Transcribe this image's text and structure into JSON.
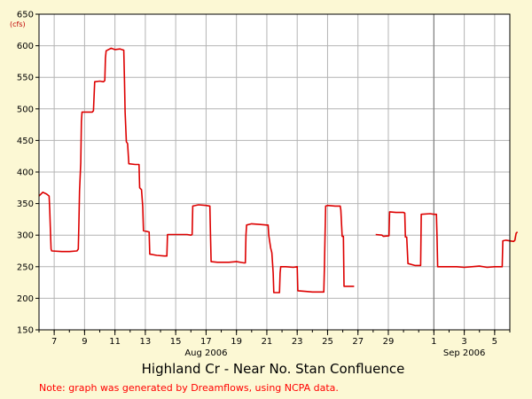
{
  "colors": {
    "background": "#fcf8d4",
    "plot_background": "#ffffff",
    "grid": "#b4b4b4",
    "series": "#dd0000",
    "note": "#ff0000",
    "unit": "#c00000"
  },
  "note": "Note: graph was generated by Dreamflows, using NCPA data.",
  "chart_data": {
    "type": "line",
    "title": "Highland Cr - Near No. Stan Confluence",
    "ylabel": "(cfs)",
    "xlabel": "",
    "ylim": [
      150,
      650
    ],
    "y_ticks": [
      150,
      200,
      250,
      300,
      350,
      400,
      450,
      500,
      550,
      600,
      650
    ],
    "xlim": [
      "2006-08-06",
      "2006-09-06"
    ],
    "x_ticks": [
      {
        "date": "2006-08-07",
        "label": "7"
      },
      {
        "date": "2006-08-09",
        "label": "9"
      },
      {
        "date": "2006-08-11",
        "label": "11"
      },
      {
        "date": "2006-08-13",
        "label": "13"
      },
      {
        "date": "2006-08-15",
        "label": "15"
      },
      {
        "date": "2006-08-17",
        "label": "17"
      },
      {
        "date": "2006-08-19",
        "label": "19"
      },
      {
        "date": "2006-08-21",
        "label": "21"
      },
      {
        "date": "2006-08-23",
        "label": "23"
      },
      {
        "date": "2006-08-25",
        "label": "25"
      },
      {
        "date": "2006-08-27",
        "label": "27"
      },
      {
        "date": "2006-08-29",
        "label": "29"
      },
      {
        "date": "2006-09-01",
        "label": "1"
      },
      {
        "date": "2006-09-03",
        "label": "3"
      },
      {
        "date": "2006-09-05",
        "label": "5"
      }
    ],
    "month_labels": [
      {
        "date": "2006-08-17",
        "label": "Aug 2006"
      },
      {
        "date": "2006-09-03",
        "label": "Sep 2006"
      }
    ],
    "month_dividers": [
      "2006-09-01"
    ],
    "grid": true,
    "series": [
      {
        "segments": [
          [
            [
              "2006-08-06T00:00",
              362
            ],
            [
              "2006-08-06T06:00",
              368
            ],
            [
              "2006-08-06T12:00",
              365
            ],
            [
              "2006-08-06T16:00",
              362
            ],
            [
              "2006-08-06T17:00",
              340
            ],
            [
              "2006-08-06T18:00",
              310
            ],
            [
              "2006-08-06T19:00",
              278
            ],
            [
              "2006-08-06T20:00",
              275
            ],
            [
              "2006-08-07T12:00",
              274
            ],
            [
              "2006-08-08T00:00",
              274
            ],
            [
              "2006-08-08T12:00",
              275
            ],
            [
              "2006-08-08T14:00",
              278
            ],
            [
              "2006-08-08T15:00",
              320
            ],
            [
              "2006-08-08T16:00",
              370
            ],
            [
              "2006-08-08T18:00",
              415
            ],
            [
              "2006-08-08T19:00",
              480
            ],
            [
              "2006-08-08T20:00",
              495
            ],
            [
              "2006-08-09T12:00",
              495
            ],
            [
              "2006-08-09T14:00",
              497
            ],
            [
              "2006-08-09T15:00",
              520
            ],
            [
              "2006-08-09T16:00",
              543
            ],
            [
              "2006-08-10T00:00",
              544
            ],
            [
              "2006-08-10T06:00",
              543
            ],
            [
              "2006-08-10T08:00",
              545
            ],
            [
              "2006-08-10T09:00",
              580
            ],
            [
              "2006-08-10T10:00",
              592
            ],
            [
              "2006-08-10T18:00",
              596
            ],
            [
              "2006-08-11T00:00",
              594
            ],
            [
              "2006-08-11T08:00",
              595
            ],
            [
              "2006-08-11T14:00",
              593
            ],
            [
              "2006-08-11T15:00",
              545
            ],
            [
              "2006-08-11T16:00",
              495
            ],
            [
              "2006-08-11T18:00",
              448
            ],
            [
              "2006-08-11T20:00",
              445
            ],
            [
              "2006-08-11T22:00",
              413
            ],
            [
              "2006-08-12T08:00",
              412
            ],
            [
              "2006-08-12T14:00",
              412
            ],
            [
              "2006-08-12T15:00",
              375
            ],
            [
              "2006-08-12T18:00",
              372
            ],
            [
              "2006-08-12T20:00",
              345
            ],
            [
              "2006-08-12T21:00",
              307
            ],
            [
              "2006-08-13T06:00",
              305
            ],
            [
              "2006-08-13T07:00",
              270
            ],
            [
              "2006-08-13T18:00",
              268
            ],
            [
              "2006-08-14T06:00",
              267
            ],
            [
              "2006-08-14T10:00",
              267
            ],
            [
              "2006-08-14T11:00",
              301
            ],
            [
              "2006-08-15T00:00",
              301
            ],
            [
              "2006-08-15T18:00",
              301
            ],
            [
              "2006-08-16T00:00",
              300
            ],
            [
              "2006-08-16T02:00",
              301
            ],
            [
              "2006-08-16T03:00",
              346
            ],
            [
              "2006-08-16T12:00",
              348
            ],
            [
              "2006-08-17T00:00",
              347
            ],
            [
              "2006-08-17T06:00",
              346
            ],
            [
              "2006-08-17T07:00",
              300
            ],
            [
              "2006-08-17T08:00",
              258
            ],
            [
              "2006-08-17T18:00",
              257
            ],
            [
              "2006-08-18T12:00",
              257
            ],
            [
              "2006-08-19T00:00",
              258
            ],
            [
              "2006-08-19T12:00",
              256
            ],
            [
              "2006-08-19T14:00",
              256
            ],
            [
              "2006-08-19T15:00",
              300
            ],
            [
              "2006-08-19T16:00",
              316
            ],
            [
              "2006-08-20T00:00",
              318
            ],
            [
              "2006-08-20T12:00",
              317
            ],
            [
              "2006-08-21T00:00",
              316
            ],
            [
              "2006-08-21T02:00",
              316
            ],
            [
              "2006-08-21T03:00",
              300
            ],
            [
              "2006-08-21T06:00",
              280
            ],
            [
              "2006-08-21T08:00",
              272
            ],
            [
              "2006-08-21T09:00",
              255
            ],
            [
              "2006-08-21T10:00",
              240
            ],
            [
              "2006-08-21T11:00",
              209
            ],
            [
              "2006-08-21T20:00",
              209
            ],
            [
              "2006-08-21T21:00",
              240
            ],
            [
              "2006-08-21T22:00",
              250
            ],
            [
              "2006-08-22T06:00",
              250
            ],
            [
              "2006-08-22T18:00",
              249
            ],
            [
              "2006-08-23T00:00",
              250
            ],
            [
              "2006-08-23T01:00",
              212
            ],
            [
              "2006-08-23T12:00",
              211
            ],
            [
              "2006-08-24T00:00",
              210
            ],
            [
              "2006-08-24T12:00",
              210
            ],
            [
              "2006-08-24T18:00",
              210
            ],
            [
              "2006-08-24T19:00",
              250
            ],
            [
              "2006-08-24T20:00",
              300
            ],
            [
              "2006-08-24T21:00",
              346
            ],
            [
              "2006-08-25T00:00",
              347
            ],
            [
              "2006-08-25T12:00",
              346
            ],
            [
              "2006-08-25T20:00",
              346
            ],
            [
              "2006-08-25T21:00",
              340
            ],
            [
              "2006-08-25T23:00",
              298
            ],
            [
              "2006-08-26T01:00",
              298
            ],
            [
              "2006-08-26T02:00",
              219
            ],
            [
              "2006-08-26T18:00",
              219
            ]
          ],
          [
            [
              "2006-08-28T04:00",
              301
            ],
            [
              "2006-08-28T14:00",
              300
            ],
            [
              "2006-08-28T16:00",
              298
            ],
            [
              "2006-08-29T01:00",
              299
            ],
            [
              "2006-08-29T02:00",
              337
            ],
            [
              "2006-08-29T12:00",
              336
            ],
            [
              "2006-08-30T00:00",
              336
            ],
            [
              "2006-08-30T02:00",
              335
            ],
            [
              "2006-08-30T03:00",
              297
            ],
            [
              "2006-08-30T05:00",
              297
            ],
            [
              "2006-08-30T07:00",
              255
            ],
            [
              "2006-08-30T18:00",
              252
            ],
            [
              "2006-08-31T03:00",
              252
            ],
            [
              "2006-08-31T04:00",
              333
            ],
            [
              "2006-08-31T18:00",
              334
            ],
            [
              "2006-09-01T00:00",
              333
            ],
            [
              "2006-09-01T04:00",
              333
            ],
            [
              "2006-09-01T05:00",
              297
            ],
            [
              "2006-09-01T06:00",
              250
            ],
            [
              "2006-09-01T18:00",
              250
            ],
            [
              "2006-09-02T12:00",
              250
            ],
            [
              "2006-09-03T00:00",
              249
            ],
            [
              "2006-09-03T12:00",
              250
            ],
            [
              "2006-09-04T00:00",
              251
            ],
            [
              "2006-09-04T12:00",
              249
            ],
            [
              "2006-09-05T00:00",
              250
            ],
            [
              "2006-09-05T12:00",
              250
            ],
            [
              "2006-09-05T13:00",
              291
            ],
            [
              "2006-09-05T18:00",
              292
            ],
            [
              "2006-09-06T06:00",
              290
            ],
            [
              "2006-09-06T08:00",
              292
            ],
            [
              "2006-09-06T10:00",
              303
            ],
            [
              "2006-09-06T12:00",
              305
            ]
          ]
        ]
      }
    ]
  }
}
